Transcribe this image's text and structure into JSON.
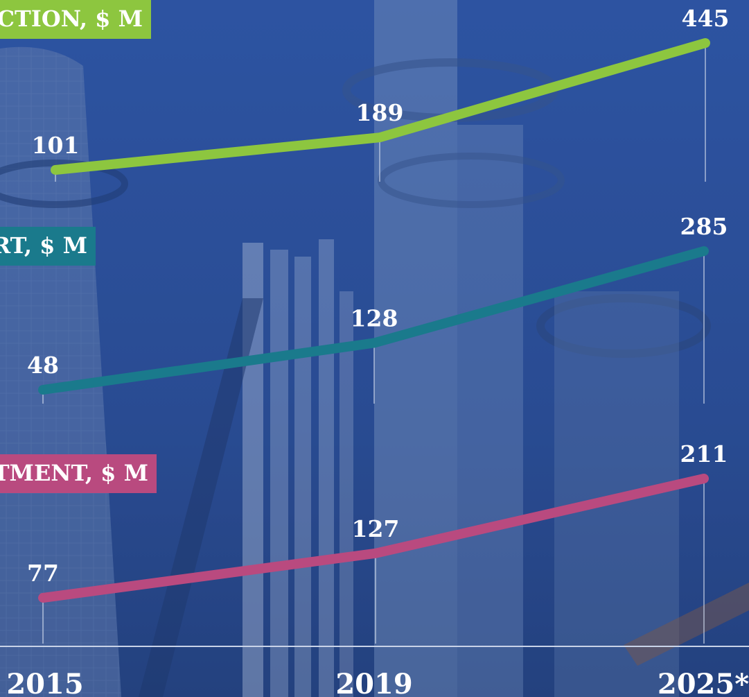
{
  "chart_data": {
    "type": "line",
    "x": [
      "2015",
      "2019",
      "2025*"
    ],
    "series": [
      {
        "name": "CTION, $ M",
        "values": [
          101,
          189,
          445
        ],
        "color": "#8dc63f"
      },
      {
        "name": "RT, $ M",
        "values": [
          48,
          128,
          285
        ],
        "color": "#1a7a8c"
      },
      {
        "name": "TMENT, $ M",
        "values": [
          77,
          127,
          211
        ],
        "color": "#b94a7f"
      }
    ],
    "grid": false,
    "legend": "left"
  },
  "colors": {
    "background": "#2b4e97",
    "text": "#ffffff",
    "axis": "#c9d3e8"
  }
}
